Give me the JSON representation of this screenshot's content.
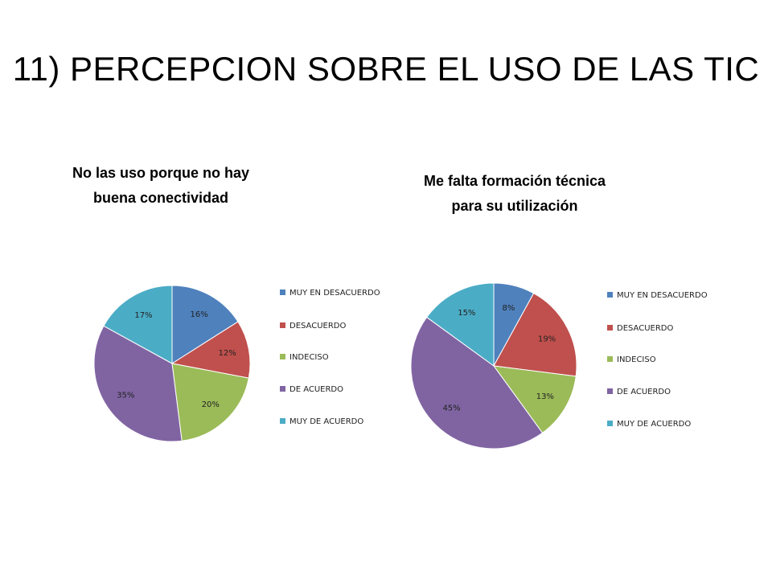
{
  "slide": {
    "title": "11) PERCEPCION SOBRE EL USO DE LAS TIC"
  },
  "colors": {
    "muy_en_desacuerdo": "#4F81BD",
    "desacuerdo": "#C0504D",
    "indeciso": "#9BBB59",
    "de_acuerdo": "#8064A2",
    "muy_de_acuerdo": "#4BACC6"
  },
  "chart_data": [
    {
      "type": "pie",
      "title": "No las uso porque no hay\nbuena conectividad",
      "legend_position": "right",
      "series": [
        {
          "name": "MUY EN DESACUERDO",
          "value": 16,
          "label": "16%",
          "color": "#4F81BD"
        },
        {
          "name": "DESACUERDO",
          "value": 12,
          "label": "12%",
          "color": "#C0504D"
        },
        {
          "name": "INDECISO",
          "value": 20,
          "label": "20%",
          "color": "#9BBB59"
        },
        {
          "name": "DE ACUERDO",
          "value": 35,
          "label": "35%",
          "color": "#8064A2"
        },
        {
          "name": "MUY DE ACUERDO",
          "value": 17,
          "label": "17%",
          "color": "#4BACC6"
        }
      ]
    },
    {
      "type": "pie",
      "title": "Me falta formación técnica\npara su utilización",
      "legend_position": "right",
      "series": [
        {
          "name": "MUY EN DESACUERDO",
          "value": 8,
          "label": "8%",
          "color": "#4F81BD"
        },
        {
          "name": "DESACUERDO",
          "value": 19,
          "label": "19%",
          "color": "#C0504D"
        },
        {
          "name": "INDECISO",
          "value": 13,
          "label": "13%",
          "color": "#9BBB59"
        },
        {
          "name": "DE ACUERDO",
          "value": 45,
          "label": "45%",
          "color": "#8064A2"
        },
        {
          "name": "MUY DE ACUERDO",
          "value": 15,
          "label": "15%",
          "color": "#4BACC6"
        }
      ]
    }
  ]
}
